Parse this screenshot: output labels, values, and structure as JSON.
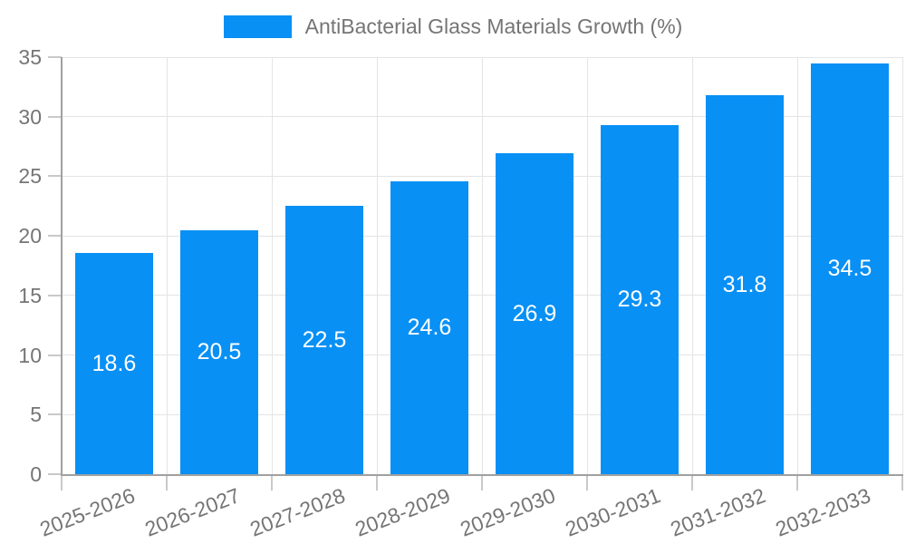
{
  "legend": {
    "label": "AntiBacterial Glass Materials Growth (%)"
  },
  "chart_data": {
    "type": "bar",
    "title": "AntiBacterial Glass Materials Growth (%)",
    "categories": [
      "2025-2026",
      "2026-2027",
      "2027-2028",
      "2028-2029",
      "2029-2030",
      "2030-2031",
      "2031-2032",
      "2032-2033"
    ],
    "values": [
      18.6,
      20.5,
      22.5,
      24.6,
      26.9,
      29.3,
      31.8,
      34.5
    ],
    "bar_labels": [
      "18.6",
      "20.5",
      "22.5",
      "24.6",
      "26.9",
      "29.3",
      "31.8",
      "34.5"
    ],
    "xlabel": "",
    "ylabel": "",
    "ylim": [
      0,
      35
    ],
    "yticks": [
      0,
      5,
      10,
      15,
      20,
      25,
      30,
      35
    ],
    "grid": true,
    "legend_position": "top",
    "colors": {
      "bar": "#0890f5",
      "bar_label": "#ffffff",
      "axis_text": "#757575",
      "axis_line": "#a0a0a0",
      "tick_line": "#c9c9c9",
      "grid_line": "#e4e4e4",
      "background": "#ffffff"
    }
  }
}
